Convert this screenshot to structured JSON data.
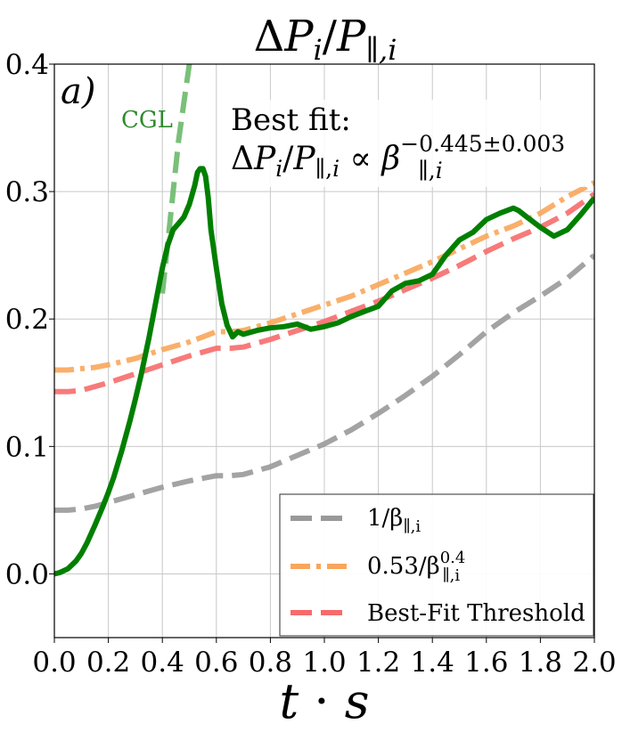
{
  "chart_data": {
    "type": "line",
    "title": "ΔP_i / P_∥,i",
    "panel_label": "a)",
    "xlabel": "t · s",
    "ylabel": "",
    "xlim": [
      0.0,
      2.0
    ],
    "ylim": [
      -0.05,
      0.4
    ],
    "x_ticks": [
      "0.0",
      "0.2",
      "0.4",
      "0.6",
      "0.8",
      "1.0",
      "1.2",
      "1.4",
      "1.6",
      "1.8",
      "2.0"
    ],
    "y_ticks": [
      "0.0",
      "0.1",
      "0.2",
      "0.3",
      "0.4"
    ],
    "grid": true,
    "legend_position": "lower-right",
    "annotations": {
      "cgl_label": "CGL",
      "fit_title": "Best fit:",
      "fit_exponent": "−0.445±0.003"
    },
    "series": [
      {
        "name": "simulation",
        "color": "#007f00",
        "style": "solid",
        "x": [
          0.0,
          0.02,
          0.05,
          0.08,
          0.1,
          0.12,
          0.15,
          0.18,
          0.2,
          0.22,
          0.25,
          0.28,
          0.3,
          0.32,
          0.35,
          0.38,
          0.4,
          0.42,
          0.44,
          0.46,
          0.48,
          0.5,
          0.52,
          0.53,
          0.54,
          0.55,
          0.56,
          0.57,
          0.58,
          0.6,
          0.62,
          0.64,
          0.66,
          0.68,
          0.7,
          0.75,
          0.8,
          0.85,
          0.9,
          0.95,
          1.0,
          1.05,
          1.1,
          1.15,
          1.2,
          1.25,
          1.3,
          1.35,
          1.4,
          1.45,
          1.5,
          1.55,
          1.6,
          1.65,
          1.7,
          1.72,
          1.75,
          1.8,
          1.85,
          1.9,
          1.95,
          2.0
        ],
        "values": [
          0.0,
          0.001,
          0.004,
          0.01,
          0.016,
          0.024,
          0.038,
          0.053,
          0.064,
          0.076,
          0.097,
          0.12,
          0.137,
          0.155,
          0.185,
          0.218,
          0.24,
          0.258,
          0.27,
          0.275,
          0.28,
          0.29,
          0.305,
          0.315,
          0.318,
          0.318,
          0.312,
          0.295,
          0.27,
          0.24,
          0.212,
          0.195,
          0.186,
          0.19,
          0.188,
          0.191,
          0.193,
          0.194,
          0.196,
          0.192,
          0.194,
          0.197,
          0.202,
          0.206,
          0.21,
          0.222,
          0.228,
          0.23,
          0.235,
          0.25,
          0.262,
          0.268,
          0.278,
          0.283,
          0.287,
          0.285,
          0.28,
          0.272,
          0.265,
          0.27,
          0.282,
          0.295
        ]
      },
      {
        "name": "CGL",
        "color": "#6ab96a",
        "style": "dashed",
        "x": [
          0.4,
          0.42,
          0.44,
          0.46,
          0.48,
          0.5
        ],
        "values": [
          0.22,
          0.26,
          0.3,
          0.34,
          0.37,
          0.4
        ]
      },
      {
        "name": "1/β_∥,i",
        "color": "#999999",
        "style": "dashed",
        "x": [
          0.0,
          0.05,
          0.1,
          0.15,
          0.2,
          0.3,
          0.4,
          0.5,
          0.6,
          0.65,
          0.7,
          0.8,
          0.9,
          1.0,
          1.1,
          1.2,
          1.3,
          1.4,
          1.5,
          1.6,
          1.7,
          1.8,
          1.9,
          2.0
        ],
        "values": [
          0.05,
          0.05,
          0.051,
          0.053,
          0.056,
          0.062,
          0.068,
          0.073,
          0.077,
          0.077,
          0.078,
          0.084,
          0.093,
          0.102,
          0.113,
          0.126,
          0.14,
          0.155,
          0.172,
          0.19,
          0.205,
          0.218,
          0.232,
          0.25
        ]
      },
      {
        "name": "0.53/β_∥,i^0.4",
        "color": "#f9a65a",
        "style": "dashdot",
        "x": [
          0.0,
          0.05,
          0.1,
          0.15,
          0.2,
          0.3,
          0.4,
          0.5,
          0.55,
          0.6,
          0.65,
          0.7,
          0.8,
          0.9,
          1.0,
          1.1,
          1.2,
          1.3,
          1.4,
          1.5,
          1.6,
          1.7,
          1.8,
          1.9,
          2.0
        ],
        "values": [
          0.16,
          0.16,
          0.161,
          0.162,
          0.164,
          0.169,
          0.176,
          0.182,
          0.186,
          0.19,
          0.19,
          0.191,
          0.197,
          0.204,
          0.211,
          0.218,
          0.227,
          0.236,
          0.245,
          0.255,
          0.265,
          0.273,
          0.283,
          0.296,
          0.307
        ]
      },
      {
        "name": "Best-Fit Threshold",
        "color": "#f76b6b",
        "style": "dashed",
        "x": [
          0.0,
          0.05,
          0.1,
          0.15,
          0.2,
          0.3,
          0.4,
          0.5,
          0.6,
          0.65,
          0.7,
          0.8,
          0.9,
          1.0,
          1.1,
          1.2,
          1.3,
          1.4,
          1.5,
          1.6,
          1.7,
          1.8,
          1.9,
          2.0
        ],
        "values": [
          0.143,
          0.143,
          0.144,
          0.147,
          0.15,
          0.157,
          0.164,
          0.171,
          0.177,
          0.177,
          0.178,
          0.184,
          0.191,
          0.198,
          0.206,
          0.214,
          0.223,
          0.232,
          0.242,
          0.253,
          0.263,
          0.272,
          0.283,
          0.298
        ]
      }
    ],
    "legend": [
      {
        "series": "1/β_∥,i",
        "label": "1/β",
        "sub": "∥,i",
        "sup": ""
      },
      {
        "series": "0.53/β_∥,i^0.4",
        "label": "0.53/β",
        "sub": "∥,i",
        "sup": "0.4"
      },
      {
        "series": "Best-Fit Threshold",
        "label": "Best-Fit Threshold",
        "sub": "",
        "sup": ""
      }
    ]
  }
}
